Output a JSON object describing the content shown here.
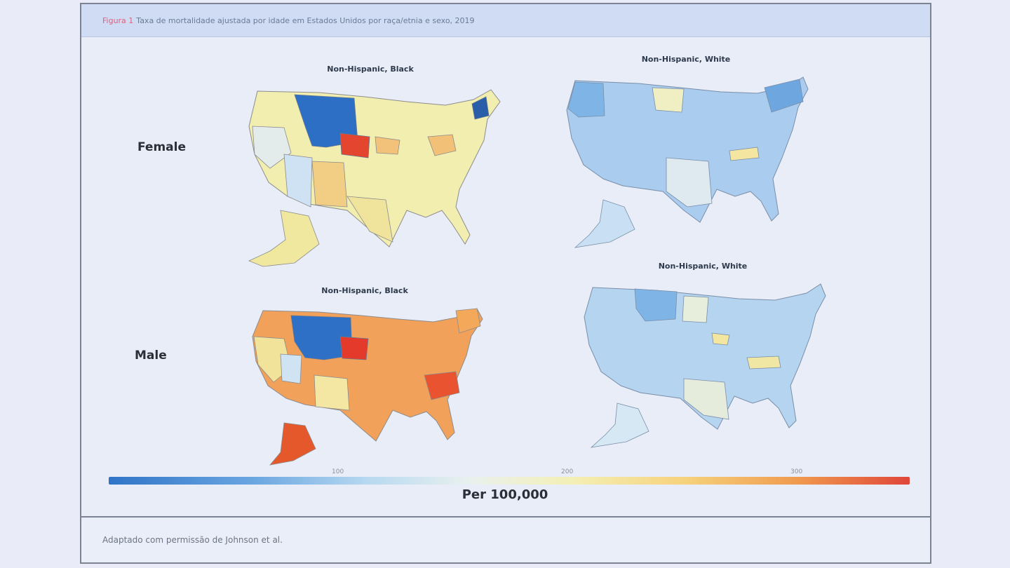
{
  "caption": {
    "figure_label": "Figura 1",
    "text": "Taxa de mortalidade ajustada por idade em Estados Unidos por raça/etnia e sexo, 2019"
  },
  "maps": [
    {
      "title": "Non-Hispanic, Black",
      "row": "Female",
      "column": 1
    },
    {
      "title": "Non-Hispanic, White",
      "row": "Female",
      "column": 2
    },
    {
      "title": "Non-Hispanic, Black",
      "row": "Male",
      "column": 1
    },
    {
      "title": "Non-Hispanic, White",
      "row": "Male",
      "column": 2
    }
  ],
  "rows": [
    "Female",
    "Male"
  ],
  "colorbar": {
    "label": "Per 100,000",
    "ticks": [
      "100",
      "200",
      "300"
    ],
    "colors": [
      "#2f74c7",
      "#6aa6e1",
      "#b6d8f0",
      "#e9f1ef",
      "#f4efb4",
      "#f6d27c",
      "#f09a4e",
      "#e0463a"
    ]
  },
  "footer": {
    "text": "Adaptado com permissão de Johnson et al."
  }
}
